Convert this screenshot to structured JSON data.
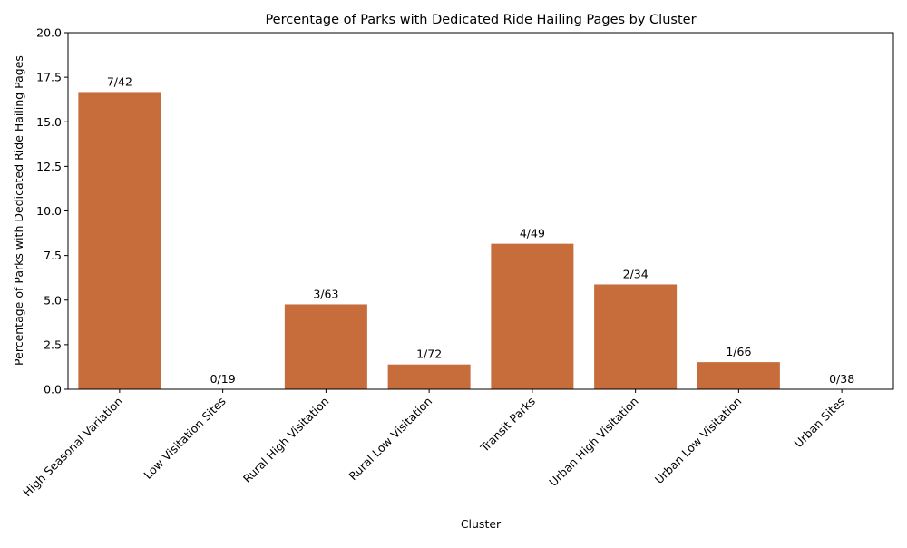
{
  "chart_data": {
    "type": "bar",
    "title": "Percentage of Parks with Dedicated Ride Hailing Pages by Cluster",
    "xlabel": "Cluster",
    "ylabel": "Percentage of Parks with Dedicated Ride Hailing Pages",
    "ylim": [
      0,
      20
    ],
    "yticks": [
      "0.0",
      "2.5",
      "5.0",
      "7.5",
      "10.0",
      "12.5",
      "15.0",
      "17.5",
      "20.0"
    ],
    "grid": false,
    "bar_color": "#c66d3b",
    "categories": [
      "High Seasonal Variation",
      "Low Visitation Sites",
      "Rural High Visitation",
      "Rural Low Visitation",
      "Transit Parks",
      "Urban High Visitation",
      "Urban Low Visitation",
      "Urban Sites"
    ],
    "values": [
      16.67,
      0.0,
      4.76,
      1.39,
      8.16,
      5.88,
      1.52,
      0.0
    ],
    "data_labels": [
      "7/42",
      "0/19",
      "3/63",
      "1/72",
      "4/49",
      "2/34",
      "1/66",
      "0/38"
    ]
  }
}
